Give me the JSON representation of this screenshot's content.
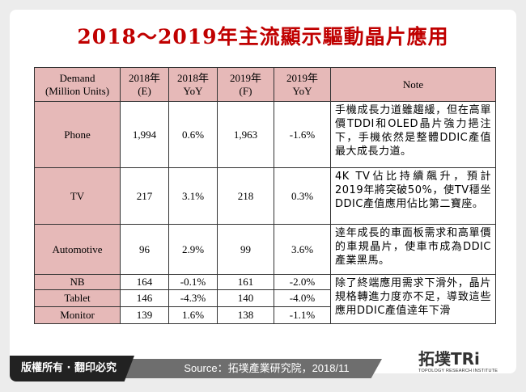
{
  "title": "2018～2019年主流顯示驅動晶片應用",
  "table": {
    "headers": [
      "Demand\n(Million Units)",
      "2018年\n(E)",
      "2018年\nYoY",
      "2019年\n(F)",
      "2019年\nYoY",
      "Note"
    ],
    "header_lines": [
      [
        "Demand",
        "(Million Units)"
      ],
      [
        "2018年",
        "(E)"
      ],
      [
        "2018年",
        "YoY"
      ],
      [
        "2019年",
        "(F)"
      ],
      [
        "2019年",
        "YoY"
      ],
      [
        "Note"
      ]
    ],
    "rows": [
      {
        "app": "Phone",
        "v2018": "1,994",
        "yoy2018": "0.6%",
        "v2019": "1,963",
        "yoy2019": "-1.6%",
        "note": "手機成長力道雖趨緩，但在高單價TDDI和OLED晶片強力挹注下，手機依然是整體DDIC產值最大成長力道。"
      },
      {
        "app": "TV",
        "v2018": "217",
        "yoy2018": "3.1%",
        "v2019": "218",
        "yoy2019": "0.3%",
        "note": "4K TV佔比持續飆升，預計2019年將突破50%，使TV穩坐DDIC產值應用佔比第二寶座。"
      },
      {
        "app": "Automotive",
        "v2018": "96",
        "yoy2018": "2.9%",
        "v2019": "99",
        "yoy2019": "3.6%",
        "note": "逹年成長的車面板需求和高單價的車規晶片，使車市成為DDIC產業黑馬。"
      },
      {
        "app": "NB",
        "v2018": "164",
        "yoy2018": "-0.1%",
        "v2019": "161",
        "yoy2019": "-2.0%",
        "note": "除了終端應用需求下滑外，晶片規格轉進力度亦不足，導致這些應用DDIC產值逹年下滑"
      },
      {
        "app": "Tablet",
        "v2018": "146",
        "yoy2018": "-4.3%",
        "v2019": "140",
        "yoy2019": "-4.0%"
      },
      {
        "app": "Monitor",
        "v2018": "139",
        "yoy2018": "1.6%",
        "v2019": "138",
        "yoy2019": "-1.1%"
      }
    ]
  },
  "footer": {
    "copyright": "版權所有 · 翻印必究",
    "source": "Source：拓墣產業研究院，2018/11",
    "logo_text": "拓墣TRi",
    "logo_sub": "TOPOLOGY RESEARCH INSTITUTE"
  },
  "colors": {
    "title": "#c00000",
    "header_bg": "#e6b9b8"
  }
}
